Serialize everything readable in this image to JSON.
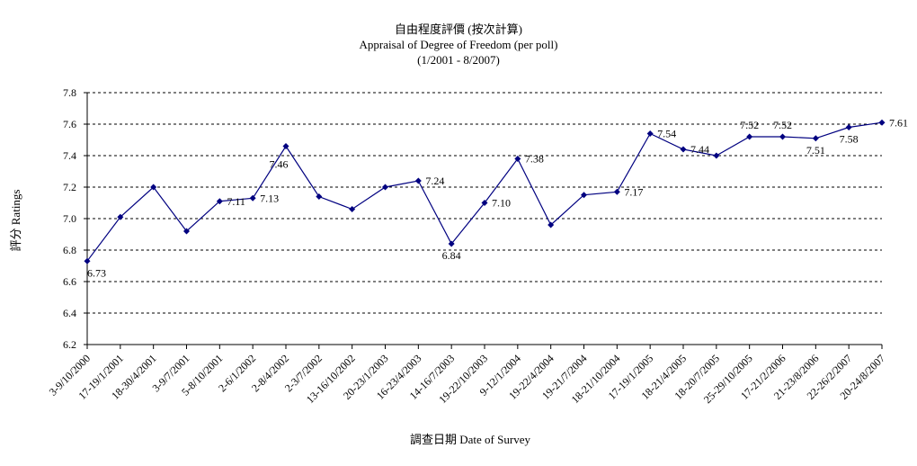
{
  "chart_data": {
    "type": "line",
    "title": "自由程度評價 (按次計算)",
    "subtitle": "Appraisal of Degree of Freedom (per poll)",
    "period": "(1/2001 - 8/2007)",
    "xlabel": "調查日期 Date of Survey",
    "ylabel": "評分 Ratings",
    "ylim": [
      6.2,
      7.8
    ],
    "yticks": [
      "6.2",
      "6.4",
      "6.6",
      "6.8",
      "7.0",
      "7.2",
      "7.4",
      "7.6",
      "7.8"
    ],
    "grid": true,
    "legend": "none",
    "color": "#000080",
    "categories": [
      "3-9/10/2000",
      "17-19/1/2001",
      "18-30/4/2001",
      "3-9/7/2001",
      "5-8/10/2001",
      "2-6/1/2002",
      "2-8/4/2002",
      "2-3/7/2002",
      "13-16/10/2002",
      "20-23/1/2003",
      "16-23/4/2003",
      "14-16/7/2003",
      "19-22/10/2003",
      "9-12/1/2004",
      "19-22/4/2004",
      "19-21/7/2004",
      "18-21/10/2004",
      "17-19/1/2005",
      "18-21/4/2005",
      "18-20/7/2005",
      "25-29/10/2005",
      "17-21/2/2006",
      "21-23/8/2006",
      "22-26/2/2007",
      "20-24/8/2007"
    ],
    "values": [
      6.73,
      7.01,
      7.2,
      6.92,
      7.11,
      7.13,
      7.46,
      7.14,
      7.06,
      7.2,
      7.24,
      6.84,
      7.1,
      7.38,
      6.96,
      7.15,
      7.17,
      7.54,
      7.44,
      7.4,
      7.52,
      7.52,
      7.51,
      7.58,
      7.61
    ],
    "data_labels": [
      {
        "index": 0,
        "text": "6.73",
        "pos": "below"
      },
      {
        "index": 4,
        "text": "7.11",
        "pos": "right"
      },
      {
        "index": 5,
        "text": "7.13",
        "pos": "right"
      },
      {
        "index": 6,
        "text": "7.46",
        "pos": "below-left"
      },
      {
        "index": 10,
        "text": "7.24",
        "pos": "right"
      },
      {
        "index": 11,
        "text": "6.84",
        "pos": "below"
      },
      {
        "index": 12,
        "text": "7.10",
        "pos": "right"
      },
      {
        "index": 13,
        "text": "7.38",
        "pos": "right"
      },
      {
        "index": 16,
        "text": "7.17",
        "pos": "right"
      },
      {
        "index": 17,
        "text": "7.54",
        "pos": "right"
      },
      {
        "index": 18,
        "text": "7.44",
        "pos": "right"
      },
      {
        "index": 20,
        "text": "7.52",
        "pos": "above"
      },
      {
        "index": 21,
        "text": "7.52",
        "pos": "above"
      },
      {
        "index": 22,
        "text": "7.51",
        "pos": "below"
      },
      {
        "index": 23,
        "text": "7.58",
        "pos": "below"
      },
      {
        "index": 24,
        "text": "7.61",
        "pos": "right"
      }
    ]
  }
}
